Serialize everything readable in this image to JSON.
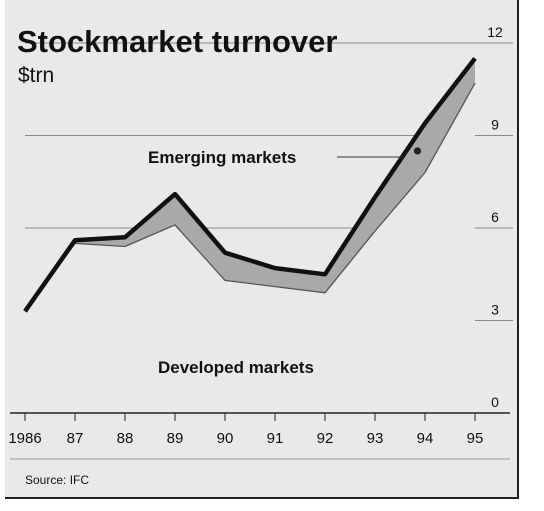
{
  "title": "Stockmarket turnover",
  "subtitle": "$trn",
  "source": "Source: IFC",
  "chart_data": {
    "type": "area",
    "title": "Stockmarket turnover",
    "ylabel": "$trn",
    "x": [
      1986,
      1987,
      1988,
      1989,
      1990,
      1991,
      1992,
      1993,
      1994,
      1995
    ],
    "x_tick_labels": [
      "1986",
      "87",
      "88",
      "89",
      "90",
      "91",
      "92",
      "93",
      "94",
      "95"
    ],
    "y_ticks": [
      "12",
      "9",
      "6",
      "3",
      "0"
    ],
    "ylim": [
      0,
      12
    ],
    "y_axis_side": "right",
    "stacked": true,
    "series": [
      {
        "name": "Developed markets",
        "values": [
          3.3,
          5.5,
          5.4,
          6.1,
          4.3,
          4.1,
          3.9,
          5.9,
          7.8,
          10.7
        ]
      },
      {
        "name": "Emerging markets",
        "values": [
          0.0,
          0.1,
          0.3,
          1.0,
          0.9,
          0.6,
          0.6,
          1.1,
          1.6,
          0.8
        ]
      }
    ],
    "annotations": [
      {
        "x": 1993.85,
        "y": 8.5,
        "marker": "dot"
      }
    ],
    "colors": {
      "developed_fill": "#e9e9e9",
      "emerging_fill": "#a9a9a9",
      "total_line": "#111111",
      "background": "#e9e9e9"
    }
  }
}
